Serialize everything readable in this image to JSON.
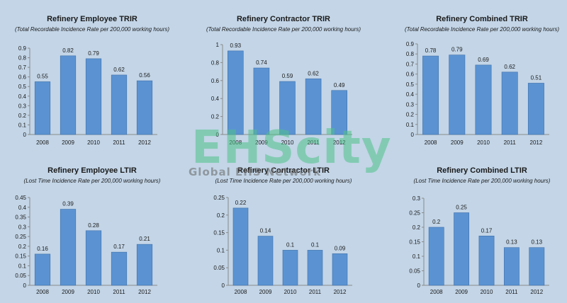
{
  "chart_data": [
    {
      "type": "bar",
      "title": "Refinery Employee TRIR",
      "subtitle": "(Total Recordable Incidence Rate per 200,000 working hours)",
      "categories": [
        "2008",
        "2009",
        "2010",
        "2011",
        "2012"
      ],
      "values": [
        0.55,
        0.82,
        0.79,
        0.62,
        0.56
      ],
      "value_labels": [
        "0.55",
        "0.82",
        "0.79",
        "0.62",
        "0.56"
      ],
      "yticks": [
        "0",
        "0.1",
        "0.2",
        "0.3",
        "0.4",
        "0.5",
        "0.6",
        "0.7",
        "0.8",
        "0.9"
      ],
      "ylim": [
        0,
        0.9
      ],
      "grid": false,
      "legend": "none"
    },
    {
      "type": "bar",
      "title": "Refinery Contractor TRIR",
      "subtitle": "(Total Recordable Incidence Rate per 200,000 working hours)",
      "categories": [
        "2008",
        "2009",
        "2010",
        "2011",
        "2012"
      ],
      "values": [
        0.93,
        0.74,
        0.59,
        0.62,
        0.49
      ],
      "value_labels": [
        "0.93",
        "0.74",
        "0.59",
        "0.62",
        "0.49"
      ],
      "yticks": [
        "0",
        "0.2",
        "0.4",
        "0.6",
        "0.8",
        "1"
      ],
      "ylim": [
        0,
        1
      ],
      "grid": false,
      "legend": "none"
    },
    {
      "type": "bar",
      "title": "Refinery Combined TRIR",
      "subtitle": "(Total Recordable Incidence Rate per 200,000 working hours)",
      "categories": [
        "2008",
        "2009",
        "2010",
        "2011",
        "2012"
      ],
      "values": [
        0.78,
        0.79,
        0.69,
        0.62,
        0.51
      ],
      "value_labels": [
        "0.78",
        "0.79",
        "0.69",
        "0.62",
        "0.51"
      ],
      "yticks": [
        "0",
        "0.1",
        "0.2",
        "0.3",
        "0.4",
        "0.5",
        "0.6",
        "0.7",
        "0.8",
        "0.9"
      ],
      "ylim": [
        0,
        0.9
      ],
      "grid": false,
      "legend": "none"
    },
    {
      "type": "bar",
      "title": "Refinery Employee LTIR",
      "subtitle": "(Lost Time Incidence Rate per 200,000 working hours)",
      "categories": [
        "2008",
        "2009",
        "2010",
        "2011",
        "2012"
      ],
      "values": [
        0.16,
        0.39,
        0.28,
        0.17,
        0.21
      ],
      "value_labels": [
        "0.16",
        "0.39",
        "0.28",
        "0.17",
        "0.21"
      ],
      "yticks": [
        "0",
        "0.05",
        "0.1",
        "0.15",
        "0.2",
        "0.25",
        "0.3",
        "0.35",
        "0.4",
        "0.45"
      ],
      "ylim": [
        0,
        0.45
      ],
      "grid": false,
      "legend": "none"
    },
    {
      "type": "bar",
      "title": "Refinery Contractor LTIR",
      "subtitle": "(Lost Time Incidence Rate per 200,000 working hours)",
      "categories": [
        "2008",
        "2009",
        "2010",
        "2011",
        "2012"
      ],
      "values": [
        0.22,
        0.14,
        0.1,
        0.1,
        0.09
      ],
      "value_labels": [
        "0.22",
        "0.14",
        "0.1",
        "0.1",
        "0.09"
      ],
      "yticks": [
        "0",
        "0.05",
        "0.1",
        "0.15",
        "0.2",
        "0.25"
      ],
      "ylim": [
        0,
        0.25
      ],
      "grid": false,
      "legend": "none"
    },
    {
      "type": "bar",
      "title": "Refinery Combined LTIR",
      "subtitle": "(Lost Time Incidence Rate per 200,000 working hours)",
      "categories": [
        "2008",
        "2009",
        "2010",
        "2011",
        "2012"
      ],
      "values": [
        0.2,
        0.25,
        0.17,
        0.13,
        0.13
      ],
      "value_labels": [
        "0.2",
        "0.25",
        "0.17",
        "0.13",
        "0.13"
      ],
      "yticks": [
        "0",
        "0.05",
        "0.1",
        "0.15",
        "0.2",
        "0.25",
        "0.3"
      ],
      "ylim": [
        0,
        0.3
      ],
      "grid": false,
      "legend": "none"
    }
  ],
  "watermark": {
    "main": "EHScity",
    "sub": "Global EHS Network",
    "color": "#4fc28a"
  },
  "colors": {
    "background": "#c3d5e7",
    "bar_fill": "#5b93d2",
    "bar_stroke": "#3f70aa"
  }
}
